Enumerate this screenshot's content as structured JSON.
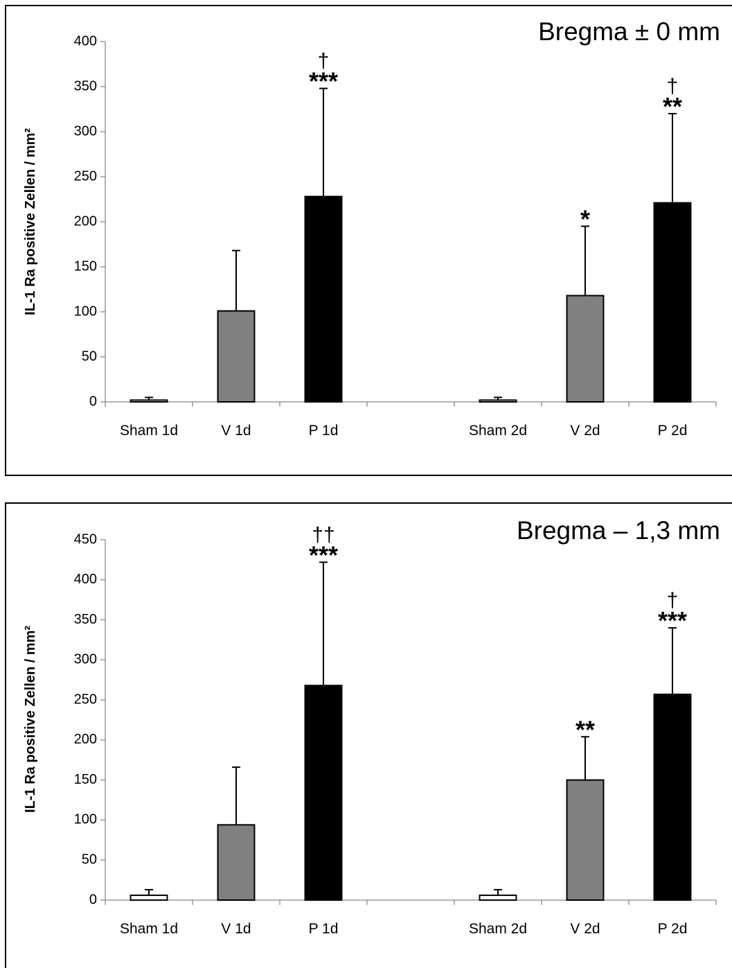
{
  "chart_data": [
    {
      "type": "bar",
      "title": "Bregma ± 0 mm",
      "ylabel": "IL-1 Ra positive Zellen / mm²",
      "xlabel": "",
      "ylim": [
        0,
        400
      ],
      "ystep": 50,
      "yticks": [
        "0",
        "50",
        "100",
        "150",
        "200",
        "250",
        "300",
        "350",
        "400"
      ],
      "categories": [
        "Sham 1d",
        "V 1d",
        "P 1d",
        "",
        "Sham 2d",
        "V 2d",
        "P 2d"
      ],
      "values": [
        2,
        101,
        228,
        null,
        2,
        118,
        221
      ],
      "errors": [
        3,
        67,
        120,
        null,
        3,
        77,
        99
      ],
      "fills": [
        "#ffffff",
        "#808080",
        "#000000",
        null,
        "#ffffff",
        "#808080",
        "#000000"
      ],
      "stars": [
        "",
        "",
        "***",
        "",
        "",
        "*",
        "**"
      ],
      "daggers": [
        "",
        "",
        "†",
        "",
        "",
        "",
        "†"
      ],
      "grid": false,
      "legend": "none"
    },
    {
      "type": "bar",
      "title": "Bregma – 1,3 mm",
      "ylabel": "IL-1 Ra positive Zellen / mm²",
      "xlabel": "",
      "ylim": [
        0,
        450
      ],
      "ystep": 50,
      "yticks": [
        "0",
        "50",
        "100",
        "150",
        "200",
        "250",
        "300",
        "350",
        "400",
        "450"
      ],
      "categories": [
        "Sham 1d",
        "V 1d",
        "P 1d",
        "",
        "Sham 2d",
        "V 2d",
        "P 2d"
      ],
      "values": [
        6,
        94,
        268,
        null,
        6,
        150,
        257
      ],
      "errors": [
        7,
        72,
        154,
        null,
        7,
        54,
        83
      ],
      "fills": [
        "#ffffff",
        "#808080",
        "#000000",
        null,
        "#ffffff",
        "#808080",
        "#000000"
      ],
      "stars": [
        "",
        "",
        "***",
        "",
        "",
        "**",
        "***"
      ],
      "daggers": [
        "",
        "",
        "††",
        "",
        "",
        "",
        "†"
      ],
      "grid": false,
      "legend": "none"
    }
  ]
}
